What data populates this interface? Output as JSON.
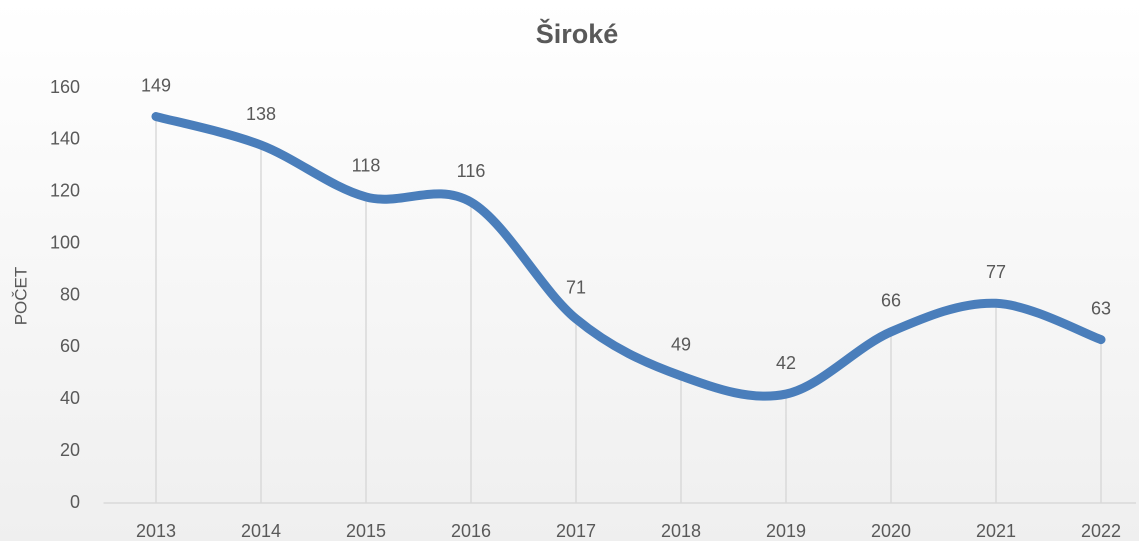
{
  "chart_data": {
    "type": "line",
    "title": "Široké",
    "y_label": "POČET",
    "categories": [
      "2013",
      "2014",
      "2015",
      "2016",
      "2017",
      "2018",
      "2019",
      "2020",
      "2021",
      "2022"
    ],
    "values": [
      149,
      138,
      118,
      116,
      71,
      49,
      42,
      66,
      77,
      63
    ],
    "color": "#4a7ebb",
    "smooth": true,
    "drop_lines": true,
    "data_labels": true,
    "ylim": [
      0,
      160
    ],
    "yticks": [
      0,
      20,
      40,
      60,
      80,
      100,
      120,
      140,
      160
    ],
    "grid": false
  }
}
